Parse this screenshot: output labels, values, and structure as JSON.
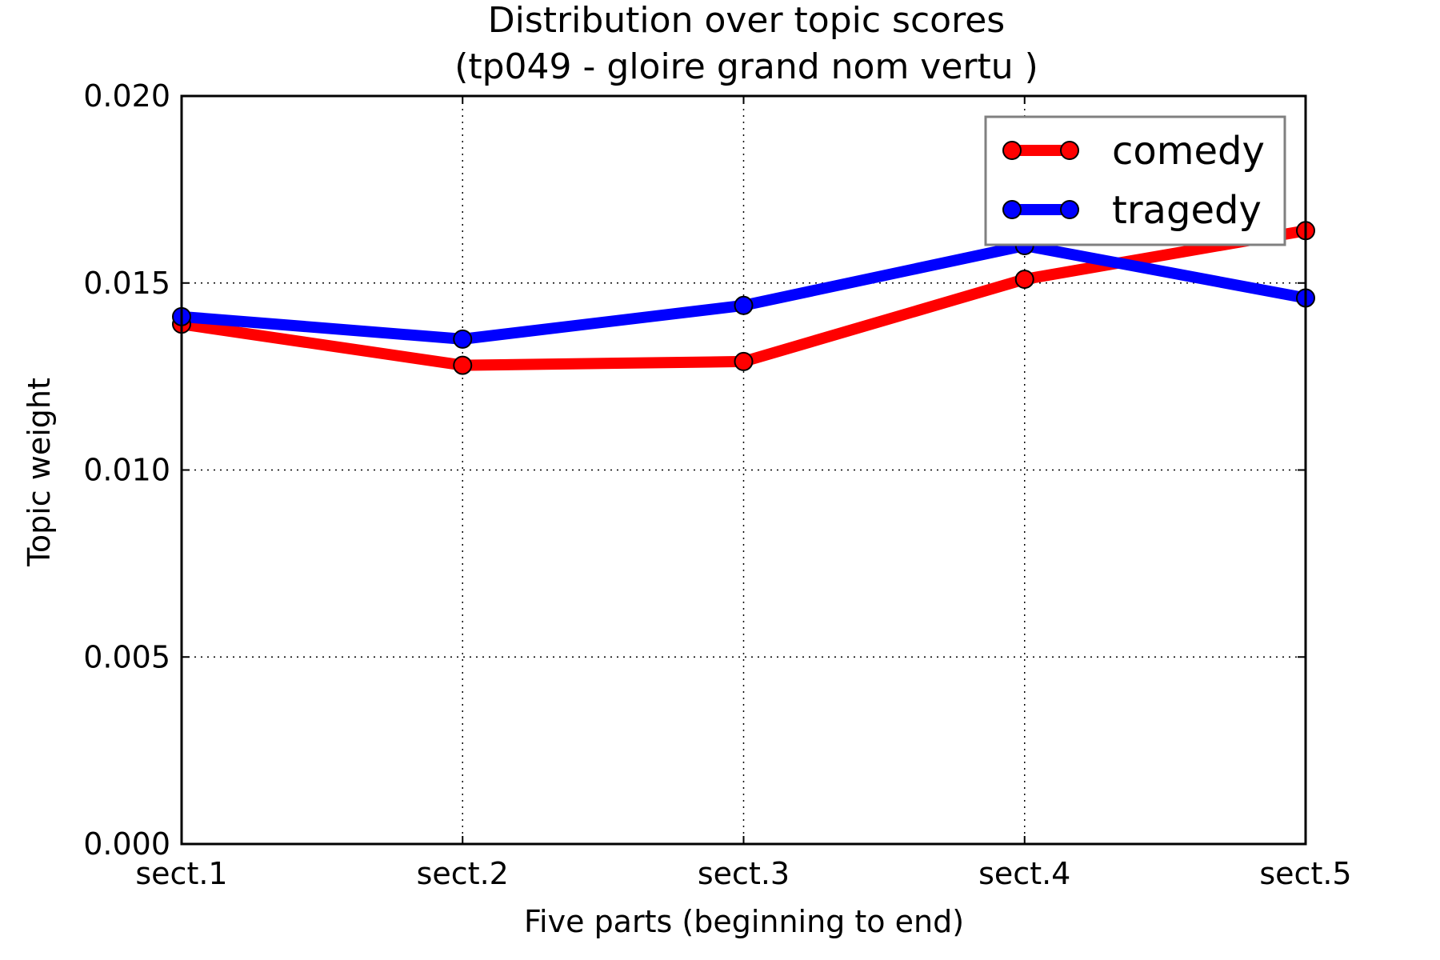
{
  "chart_data": {
    "type": "line",
    "title": "Distribution over topic scores",
    "subtitle": "(tp049 - gloire grand nom vertu )",
    "xlabel": "Five parts (beginning to end)",
    "ylabel": "Topic weight",
    "categories": [
      "sect.1",
      "sect.2",
      "sect.3",
      "sect.4",
      "sect.5"
    ],
    "ylim": [
      0,
      0.02
    ],
    "yticks": [
      "0.000",
      "0.005",
      "0.010",
      "0.015",
      "0.020"
    ],
    "grid": true,
    "legend_position": "top-right",
    "series": [
      {
        "name": "comedy",
        "color": "#ff0000",
        "values": [
          0.0139,
          0.0128,
          0.0129,
          0.0151,
          0.0164
        ]
      },
      {
        "name": "tragedy",
        "color": "#0000ff",
        "values": [
          0.0141,
          0.0135,
          0.0144,
          0.016,
          0.0146
        ]
      }
    ]
  }
}
